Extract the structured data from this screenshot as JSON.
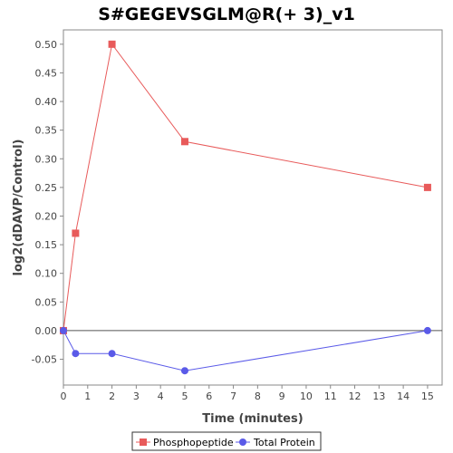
{
  "chart_data": {
    "type": "line",
    "title": "S#GEGEVSGLM@R(+ 3)_v1",
    "xlabel": "Time (minutes)",
    "ylabel": "log2(dDAVP/Control)",
    "xlim": [
      0,
      15.6
    ],
    "ylim": [
      -0.095,
      0.525
    ],
    "x_ticks": [
      "0",
      "1",
      "2",
      "3",
      "4",
      "5",
      "6",
      "7",
      "8",
      "9",
      "10",
      "11",
      "12",
      "13",
      "14",
      "15"
    ],
    "y_ticks": [
      "-0.05",
      "0.00",
      "0.05",
      "0.10",
      "0.15",
      "0.20",
      "0.25",
      "0.30",
      "0.35",
      "0.40",
      "0.45",
      "0.50"
    ],
    "grid": false,
    "zero_line": true,
    "legend_position": "bottom",
    "series": [
      {
        "name": "Phosphopeptide",
        "color": "#e85a5a",
        "marker": "square",
        "x": [
          0,
          0.5,
          2,
          5,
          15
        ],
        "y": [
          0.0,
          0.17,
          0.5,
          0.33,
          0.25
        ]
      },
      {
        "name": "Total Protein",
        "color": "#5a5ae8",
        "marker": "circle",
        "x": [
          0,
          0.5,
          2,
          5,
          15
        ],
        "y": [
          0.0,
          -0.04,
          -0.04,
          -0.07,
          0.0
        ]
      }
    ]
  }
}
